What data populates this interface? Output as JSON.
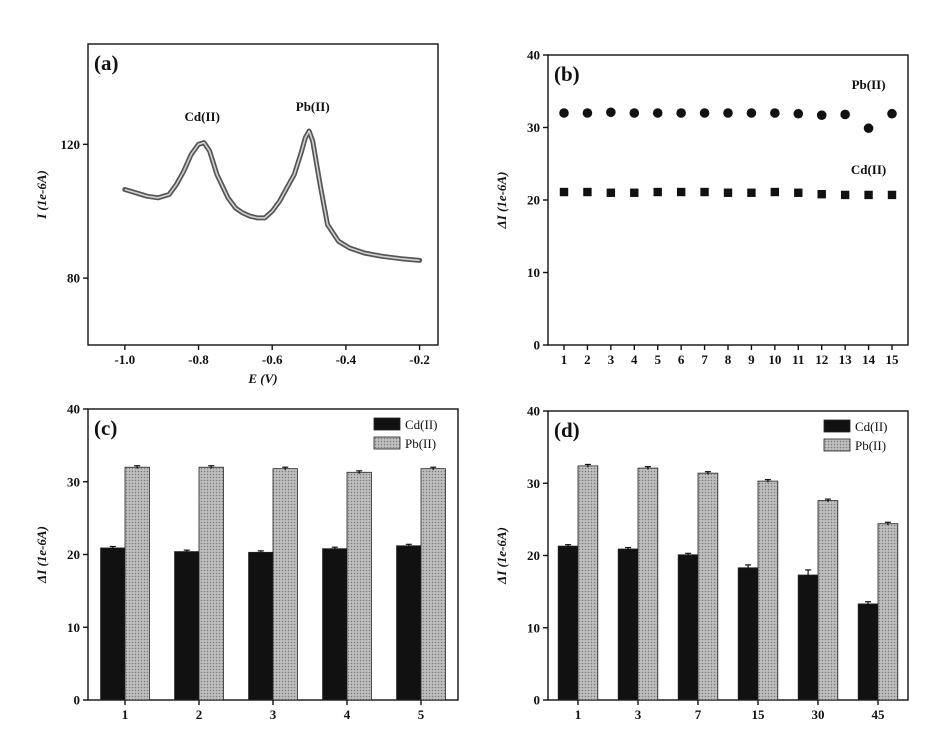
{
  "chart_data": [
    {
      "panel": "(a)",
      "type": "line",
      "xlabel": "E (V)",
      "ylabel": "I (1e-6A)",
      "xlim": [
        -1.1,
        -0.15
      ],
      "ylim": [
        60,
        150
      ],
      "xticks": [
        -1.0,
        -0.8,
        -0.6,
        -0.4,
        -0.2
      ],
      "xtick_labels": [
        "-1.0",
        "-0.8",
        "-0.6",
        "-0.4",
        "-0.2"
      ],
      "yticks": [
        80,
        120
      ],
      "ytick_labels": [
        "80",
        "120"
      ],
      "annotations": [
        {
          "text": "Cd(II)",
          "x": -0.79,
          "y": 127
        },
        {
          "text": "Pb(II)",
          "x": -0.49,
          "y": 130
        }
      ],
      "series": [
        {
          "x": [
            -1.0,
            -0.97,
            -0.94,
            -0.91,
            -0.88,
            -0.86,
            -0.84,
            -0.82,
            -0.8,
            -0.785,
            -0.77,
            -0.75,
            -0.72,
            -0.7,
            -0.68,
            -0.66,
            -0.64,
            -0.62,
            -0.6,
            -0.58,
            -0.56,
            -0.54,
            -0.52,
            -0.51,
            -0.5,
            -0.49,
            -0.47,
            -0.45,
            -0.42,
            -0.39,
            -0.35,
            -0.3,
            -0.25,
            -0.2
          ],
          "y": [
            106.5,
            105.5,
            104.5,
            104.0,
            105.0,
            108.0,
            112.0,
            117.0,
            120.0,
            120.5,
            118.0,
            111.0,
            104.0,
            101.0,
            99.5,
            98.5,
            98.0,
            98.0,
            100.0,
            103.0,
            107.0,
            111.0,
            118.0,
            122.0,
            124.0,
            121.0,
            108.0,
            96.0,
            91.0,
            89.0,
            87.5,
            86.5,
            85.8,
            85.3
          ]
        }
      ]
    },
    {
      "panel": "(b)",
      "type": "scatter",
      "ylabel": "ΔI (1e-6A)",
      "ylim": [
        0,
        40
      ],
      "yticks": [
        0,
        10,
        20,
        30,
        40
      ],
      "ytick_labels": [
        "0",
        "10",
        "20",
        "30",
        "40"
      ],
      "categories": [
        "1",
        "2",
        "3",
        "4",
        "5",
        "6",
        "7",
        "8",
        "9",
        "10",
        "11",
        "12",
        "13",
        "14",
        "15"
      ],
      "annotations": [
        {
          "text": "Pb(II)",
          "x": 14,
          "y": 35.3
        },
        {
          "text": "Cd(II)",
          "x": 14,
          "y": 23.6
        }
      ],
      "series": [
        {
          "marker": "circle",
          "values": [
            32.0,
            32.0,
            32.1,
            32.0,
            32.0,
            32.0,
            32.0,
            32.0,
            32.0,
            32.0,
            31.9,
            31.7,
            31.8,
            29.9,
            31.9
          ]
        },
        {
          "marker": "square",
          "values": [
            21.1,
            21.1,
            21.0,
            21.0,
            21.1,
            21.1,
            21.1,
            21.0,
            21.0,
            21.1,
            21.0,
            20.8,
            20.7,
            20.7,
            20.7
          ]
        }
      ]
    },
    {
      "panel": "(c)",
      "type": "bar",
      "ylabel": "ΔI (1e-6A)",
      "ylim": [
        0,
        40
      ],
      "yticks": [
        0,
        10,
        20,
        30,
        40
      ],
      "ytick_labels": [
        "0",
        "10",
        "20",
        "30",
        "40"
      ],
      "categories": [
        "1",
        "2",
        "3",
        "4",
        "5"
      ],
      "legend_position": "top-right",
      "series": [
        {
          "name": "Cd(II)",
          "color": "#111111",
          "values": [
            20.9,
            20.4,
            20.3,
            20.8,
            21.2
          ],
          "errors": [
            0.2,
            0.2,
            0.2,
            0.2,
            0.2
          ]
        },
        {
          "name": "Pb(II)",
          "color": "#a8a8a8",
          "values": [
            32.0,
            32.0,
            31.8,
            31.3,
            31.8
          ],
          "errors": [
            0.2,
            0.2,
            0.2,
            0.2,
            0.2
          ]
        }
      ]
    },
    {
      "panel": "(d)",
      "type": "bar",
      "ylabel": "ΔI (1e-6A)",
      "ylim": [
        0,
        40
      ],
      "yticks": [
        0,
        10,
        20,
        30,
        40
      ],
      "ytick_labels": [
        "0",
        "10",
        "20",
        "30",
        "40"
      ],
      "categories": [
        "1",
        "3",
        "7",
        "15",
        "30",
        "45"
      ],
      "legend_position": "top-right",
      "series": [
        {
          "name": "Cd(II)",
          "color": "#111111",
          "values": [
            21.3,
            20.9,
            20.1,
            18.3,
            17.3,
            13.3
          ],
          "errors": [
            0.2,
            0.2,
            0.2,
            0.4,
            0.7,
            0.3
          ]
        },
        {
          "name": "Pb(II)",
          "color": "#a8a8a8",
          "values": [
            32.4,
            32.1,
            31.4,
            30.3,
            27.6,
            24.4
          ],
          "errors": [
            0.2,
            0.2,
            0.2,
            0.2,
            0.2,
            0.2
          ]
        }
      ]
    }
  ]
}
